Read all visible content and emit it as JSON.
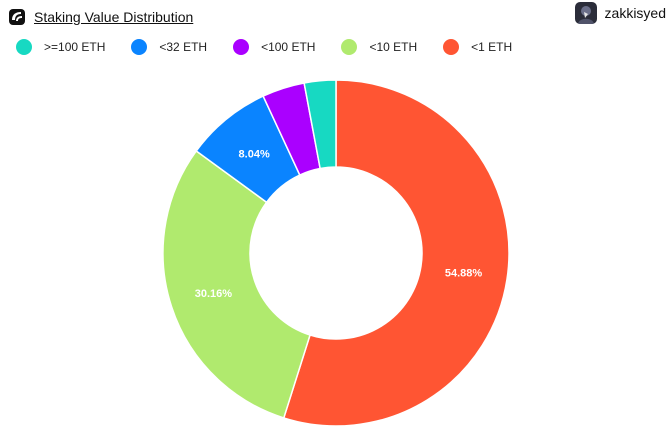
{
  "header": {
    "title": "Staking Value Distribution",
    "logo_icon": "dune-logo-icon",
    "user": {
      "name": "zakkisyed",
      "avatar_icon": "avatar-icon"
    }
  },
  "chart_data": {
    "type": "pie",
    "variant": "donut",
    "title": "Staking Value Distribution",
    "legend_position": "top-left",
    "categories": [
      ">=100 ETH",
      "<32 ETH",
      "<100 ETH",
      "<10 ETH",
      "<1 ETH"
    ],
    "colors": [
      "#17d9c2",
      "#0a84ff",
      "#aa00ff",
      "#b0ea6e",
      "#ff5533"
    ],
    "values": [
      2.95,
      8.04,
      3.97,
      30.16,
      54.88
    ],
    "value_labels": [
      "",
      "8.04%",
      "",
      "30.16%",
      "54.88%"
    ]
  }
}
